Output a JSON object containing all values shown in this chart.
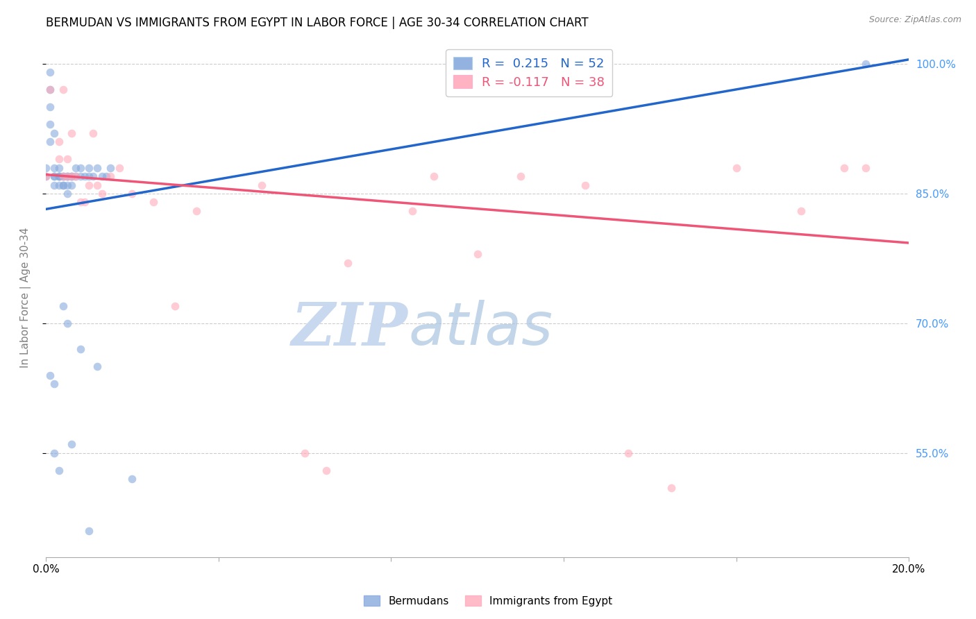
{
  "title": "BERMUDAN VS IMMIGRANTS FROM EGYPT IN LABOR FORCE | AGE 30-34 CORRELATION CHART",
  "source": "Source: ZipAtlas.com",
  "ylabel": "In Labor Force | Age 30-34",
  "legend_blue_r": "R =  0.215",
  "legend_blue_n": "N = 52",
  "legend_pink_r": "R = -0.117",
  "legend_pink_n": "N = 38",
  "blue_color": "#88AADD",
  "pink_color": "#FFAABB",
  "blue_line_color": "#2266CC",
  "pink_line_color": "#EE5577",
  "scatter_alpha": 0.6,
  "scatter_size": 70,
  "blue_line_x0": 0.0,
  "blue_line_y0": 0.832,
  "blue_line_x1": 0.2,
  "blue_line_y1": 1.005,
  "pink_line_x0": 0.0,
  "pink_line_y0": 0.872,
  "pink_line_x1": 0.2,
  "pink_line_y1": 0.793,
  "blue_scatter_x": [
    0.0,
    0.0,
    0.001,
    0.001,
    0.001,
    0.001,
    0.001,
    0.002,
    0.002,
    0.002,
    0.002,
    0.002,
    0.003,
    0.003,
    0.003,
    0.003,
    0.003,
    0.004,
    0.004,
    0.004,
    0.004,
    0.005,
    0.005,
    0.005,
    0.005,
    0.006,
    0.006,
    0.006,
    0.007,
    0.007,
    0.008,
    0.008,
    0.009,
    0.01,
    0.01,
    0.011,
    0.012,
    0.013,
    0.014,
    0.015,
    0.001,
    0.002,
    0.002,
    0.003,
    0.004,
    0.005,
    0.006,
    0.008,
    0.01,
    0.012,
    0.02,
    0.19
  ],
  "blue_scatter_y": [
    0.87,
    0.88,
    0.97,
    0.99,
    0.93,
    0.91,
    0.95,
    0.87,
    0.92,
    0.88,
    0.86,
    0.87,
    0.87,
    0.88,
    0.87,
    0.86,
    0.87,
    0.87,
    0.86,
    0.87,
    0.86,
    0.87,
    0.85,
    0.86,
    0.87,
    0.86,
    0.87,
    0.87,
    0.88,
    0.87,
    0.88,
    0.87,
    0.87,
    0.88,
    0.87,
    0.87,
    0.88,
    0.87,
    0.87,
    0.88,
    0.64,
    0.63,
    0.55,
    0.53,
    0.72,
    0.7,
    0.56,
    0.67,
    0.46,
    0.65,
    0.52,
    1.0
  ],
  "pink_scatter_x": [
    0.0,
    0.001,
    0.003,
    0.003,
    0.004,
    0.004,
    0.005,
    0.005,
    0.006,
    0.006,
    0.007,
    0.008,
    0.009,
    0.01,
    0.011,
    0.012,
    0.013,
    0.015,
    0.017,
    0.02,
    0.025,
    0.03,
    0.035,
    0.05,
    0.06,
    0.065,
    0.07,
    0.085,
    0.09,
    0.1,
    0.11,
    0.125,
    0.135,
    0.145,
    0.16,
    0.175,
    0.185,
    0.19
  ],
  "pink_scatter_y": [
    0.87,
    0.97,
    0.91,
    0.89,
    0.97,
    0.87,
    0.89,
    0.87,
    0.92,
    0.87,
    0.87,
    0.84,
    0.84,
    0.86,
    0.92,
    0.86,
    0.85,
    0.87,
    0.88,
    0.85,
    0.84,
    0.72,
    0.83,
    0.86,
    0.55,
    0.53,
    0.77,
    0.83,
    0.87,
    0.78,
    0.87,
    0.86,
    0.55,
    0.51,
    0.88,
    0.83,
    0.88,
    0.88
  ],
  "watermark_zip": "ZIP",
  "watermark_atlas": "atlas",
  "watermark_color": "#C8D8EE",
  "right_ytick_color": "#4499FF",
  "xlim": [
    0.0,
    0.2
  ],
  "ylim": [
    0.43,
    1.03
  ],
  "yticks": [
    0.55,
    0.7,
    0.85,
    1.0
  ],
  "ytick_labels_right": [
    "55.0%",
    "70.0%",
    "85.0%",
    "100.0%"
  ]
}
